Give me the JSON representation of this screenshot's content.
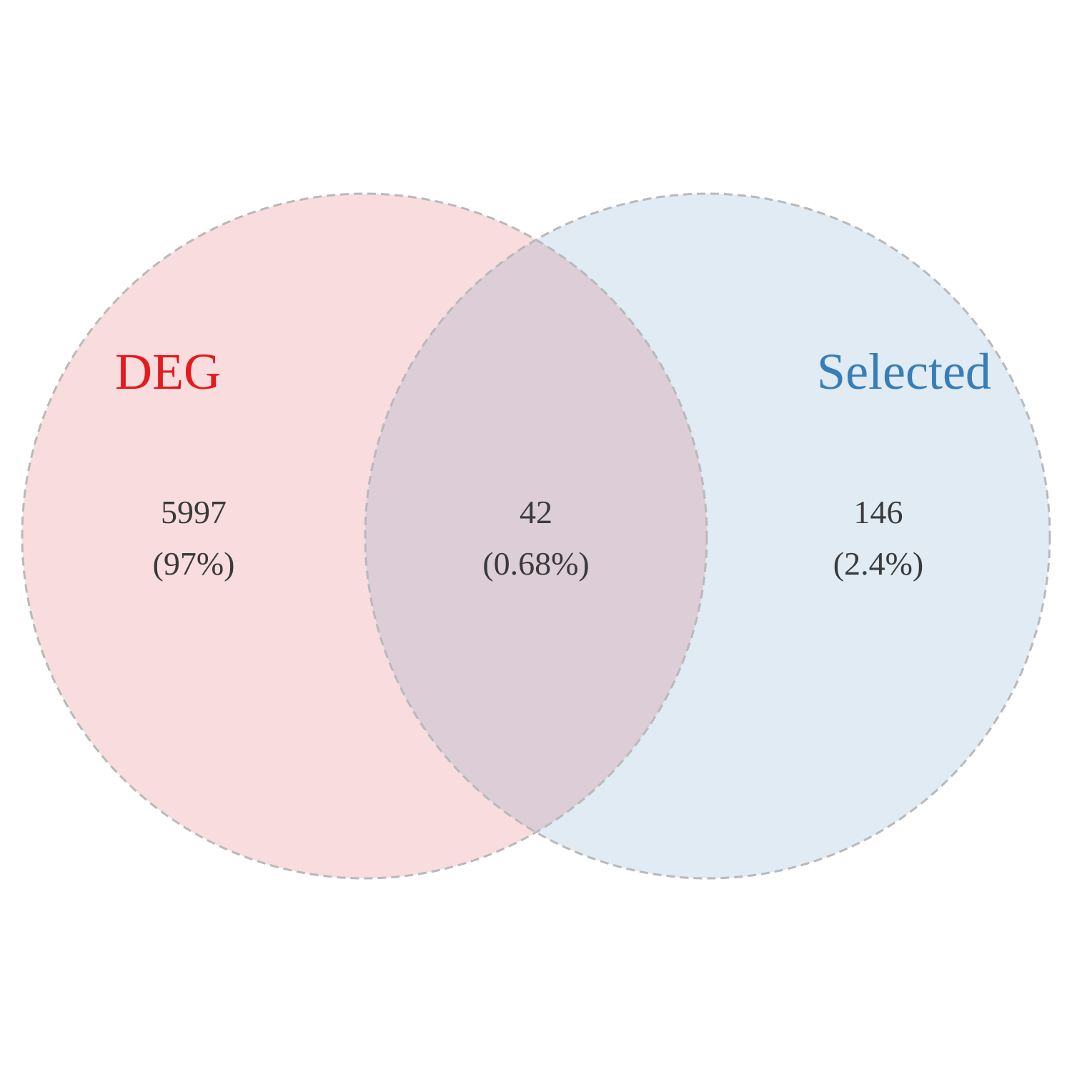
{
  "venn": {
    "sets": [
      {
        "name": "DEG",
        "color": "#e41a1c",
        "fill": "#f8dcde"
      },
      {
        "name": "Selected",
        "color": "#377eb8",
        "fill": "#e0ebf4"
      }
    ],
    "overlap_fill": "#dccdd6",
    "outline_color": "#b9b9b9",
    "regions": {
      "deg_only": {
        "count": "5997",
        "percent": "(97%)"
      },
      "intersection": {
        "count": "42",
        "percent": "(0.68%)"
      },
      "selected_only": {
        "count": "146",
        "percent": "(2.4%)"
      }
    }
  }
}
